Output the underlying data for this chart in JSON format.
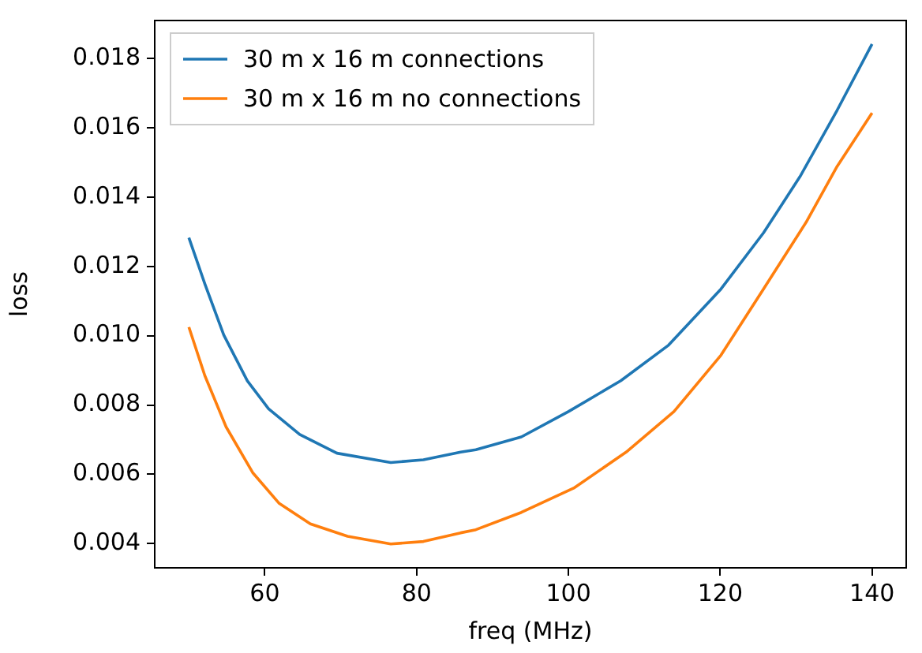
{
  "chart_data": {
    "type": "line",
    "xlabel": "freq (MHz)",
    "ylabel": "loss",
    "legend": "top left",
    "grid": false,
    "marker": "none",
    "line_style": "solid",
    "xlim": [
      45.5,
      144.5
    ],
    "xticks": [
      60,
      80,
      100,
      120,
      140
    ],
    "ylim": [
      0.0033,
      0.0191
    ],
    "yticks": [
      0.004,
      0.006,
      0.008,
      {
        "value": 0.01,
        "label": "0.010"
      },
      0.012,
      0.014,
      0.016,
      0.018
    ],
    "series": [
      {
        "name": "30 m x 16 m connections",
        "color": "#1f77b4",
        "x": [
          50,
          52.1,
          54.6,
          57.7,
          60.5,
          64.6,
          69.5,
          76.6,
          80.9,
          85.8,
          87.8,
          93.8,
          100,
          106.9,
          113.2,
          120.1,
          125.7,
          130.5,
          135.4,
          140
        ],
        "values": [
          0.01283,
          0.0115,
          0.01002,
          0.0087,
          0.00789,
          0.00715,
          0.00661,
          0.00634,
          0.00642,
          0.00664,
          0.00671,
          0.00708,
          0.00781,
          0.0087,
          0.00973,
          0.01135,
          0.01297,
          0.01459,
          0.01651,
          0.01842
        ]
      },
      {
        "name": "30 m x 16 m no connections",
        "color": "#ff7f0e",
        "x": [
          50,
          52.1,
          54.9,
          58.4,
          61.9,
          66,
          70.9,
          76.6,
          80.9,
          85.8,
          87.8,
          93.8,
          100.7,
          107.6,
          113.9,
          120.1,
          125.7,
          131.3,
          135.4,
          140
        ],
        "values": [
          0.01025,
          0.00885,
          0.00737,
          0.00605,
          0.00516,
          0.00457,
          0.00421,
          0.00399,
          0.00406,
          0.00431,
          0.0044,
          0.0049,
          0.0056,
          0.00664,
          0.00781,
          0.00944,
          0.01135,
          0.01327,
          0.01489,
          0.01643
        ]
      }
    ]
  }
}
